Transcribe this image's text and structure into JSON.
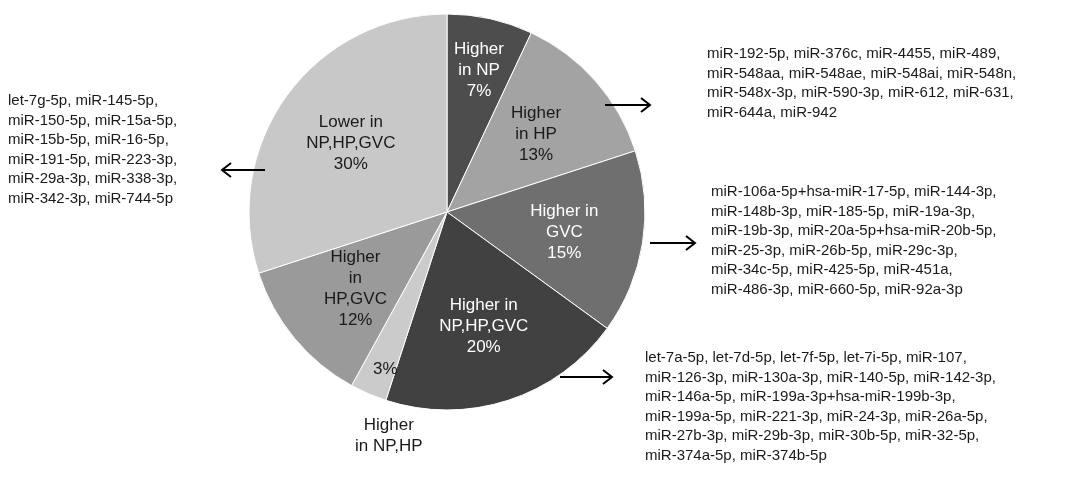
{
  "chart_data": {
    "type": "pie",
    "categories": [
      "Higher in NP",
      "Higher in HP",
      "Higher in GVC",
      "Higher in NP,HP,GVC",
      "Higher in NP,HP",
      "Higher in HP,GVC",
      "Lower in NP,HP,GVC"
    ],
    "values": [
      7,
      13,
      15,
      20,
      3,
      12,
      30
    ],
    "value_labels": [
      "7%",
      "13%",
      "15%",
      "20%",
      "3%",
      "12%",
      "30%"
    ],
    "colors": [
      "#4d4d4d",
      "#a3a3a3",
      "#6f6f6f",
      "#414141",
      "#cbcbcb",
      "#9a9a9a",
      "#c8c8c8"
    ],
    "annotations": [
      "let-7g-5p, miR-145-5p, miR-150-5p, miR-15a-5p, miR-15b-5p, miR-16-5p, miR-191-5p, miR-223-3p, miR-29a-3p, miR-338-3p, miR-342-3p, miR-744-5p",
      "miR-192-5p, miR-376c, miR-4455, miR-489, miR-548aa, miR-548ae, miR-548ai, miR-548n, miR-548x-3p, miR-590-3p, miR-612, miR-631, miR-644a, miR-942",
      "miR-106a-5p+hsa-miR-17-5p, miR-144-3p, miR-148b-3p, miR-185-5p, miR-19a-3p, miR-19b-3p, miR-20a-5p+hsa-miR-20b-5p, miR-25-3p, miR-26b-5p, miR-29c-3p, miR-34c-5p, miR-425-5p, miR-451a, miR-486-3p, miR-660-5p, miR-92a-3p",
      "let-7a-5p, let-7d-5p, let-7f-5p, let-7i-5p, miR-107, miR-126-3p, miR-130a-3p, miR-140-5p, miR-142-3p, miR-146a-5p, miR-199a-3p+hsa-miR-199b-3p, miR-199a-5p, miR-221-3p, miR-24-3p, miR-26a-5p, miR-27b-3p, miR-29b-3p, miR-30b-5p, miR-32-5p, miR-374a-5p, miR-374b-5p"
    ]
  }
}
